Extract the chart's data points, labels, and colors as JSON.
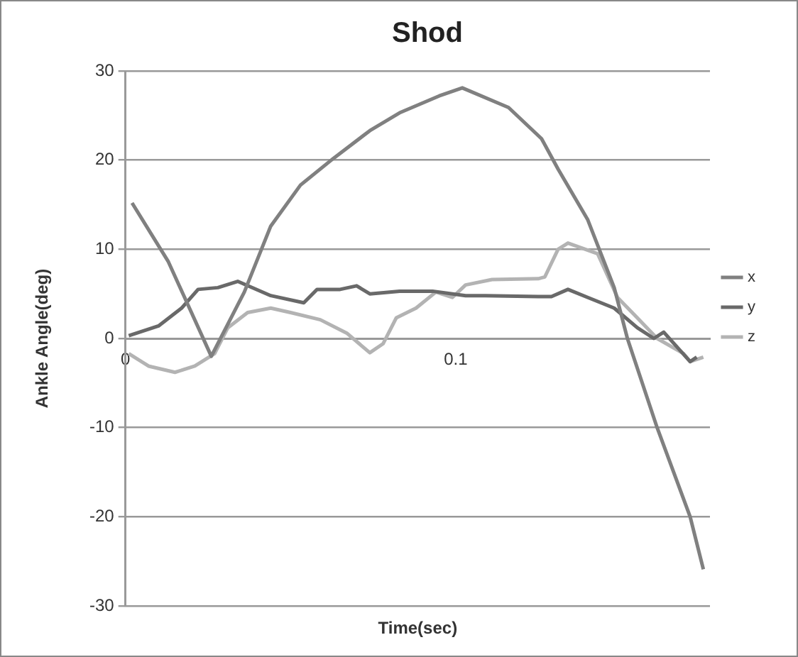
{
  "chart_data": {
    "type": "line",
    "title": "Shod",
    "xlabel": "Time(sec)",
    "ylabel": "Ankle Angle(deg)",
    "xlim": [
      0,
      0.177
    ],
    "xticks": [
      0,
      0.1
    ],
    "ylim": [
      -30,
      30
    ],
    "yticks": [
      -30,
      -20,
      -10,
      0,
      10,
      20,
      30
    ],
    "grid": "y",
    "legend": "right",
    "marker": "none",
    "series": [
      {
        "name": "x",
        "color": "#808080",
        "x": [
          0.002,
          0.013,
          0.026,
          0.036,
          0.044,
          0.053,
          0.063,
          0.074,
          0.083,
          0.095,
          0.102,
          0.116,
          0.126,
          0.131,
          0.14,
          0.148,
          0.152,
          0.161,
          0.171,
          0.175
        ],
        "values": [
          15.2,
          8.6,
          -2,
          5.2,
          12.6,
          17.2,
          20.2,
          23.3,
          25.3,
          27.2,
          28.1,
          25.9,
          22.4,
          19,
          13.3,
          5.7,
          0,
          -10,
          -20,
          -25.9
        ]
      },
      {
        "name": "y",
        "color": "#696969",
        "x": [
          0.001,
          0.01,
          0.017,
          0.022,
          0.028,
          0.034,
          0.044,
          0.054,
          0.058,
          0.065,
          0.07,
          0.074,
          0.083,
          0.093,
          0.103,
          0.109,
          0.125,
          0.129,
          0.134,
          0.14,
          0.148,
          0.155,
          0.16,
          0.163,
          0.171,
          0.173
        ],
        "values": [
          0.3,
          1.4,
          3.4,
          5.5,
          5.7,
          6.4,
          4.8,
          4,
          5.5,
          5.5,
          5.9,
          5,
          5.3,
          5.3,
          4.8,
          4.8,
          4.7,
          4.7,
          5.5,
          4.6,
          3.4,
          1.2,
          0,
          0.7,
          -2.6,
          -2.1
        ]
      },
      {
        "name": "z",
        "color": "#b3b3b3",
        "x": [
          0.001,
          0.007,
          0.015,
          0.021,
          0.027,
          0.031,
          0.037,
          0.044,
          0.05,
          0.059,
          0.067,
          0.074,
          0.078,
          0.082,
          0.088,
          0.094,
          0.099,
          0.103,
          0.111,
          0.125,
          0.127,
          0.131,
          0.134,
          0.143,
          0.149,
          0.155,
          0.161,
          0.169,
          0.171,
          0.175
        ],
        "values": [
          -1.7,
          -3.1,
          -3.8,
          -3.1,
          -1.7,
          1.2,
          2.9,
          3.4,
          2.9,
          2.1,
          0.6,
          -1.6,
          -0.6,
          2.3,
          3.4,
          5.2,
          4.6,
          6,
          6.6,
          6.7,
          6.9,
          10,
          10.7,
          9.5,
          4.6,
          2.3,
          0,
          -1.7,
          -2.6,
          -2.1
        ]
      }
    ]
  }
}
